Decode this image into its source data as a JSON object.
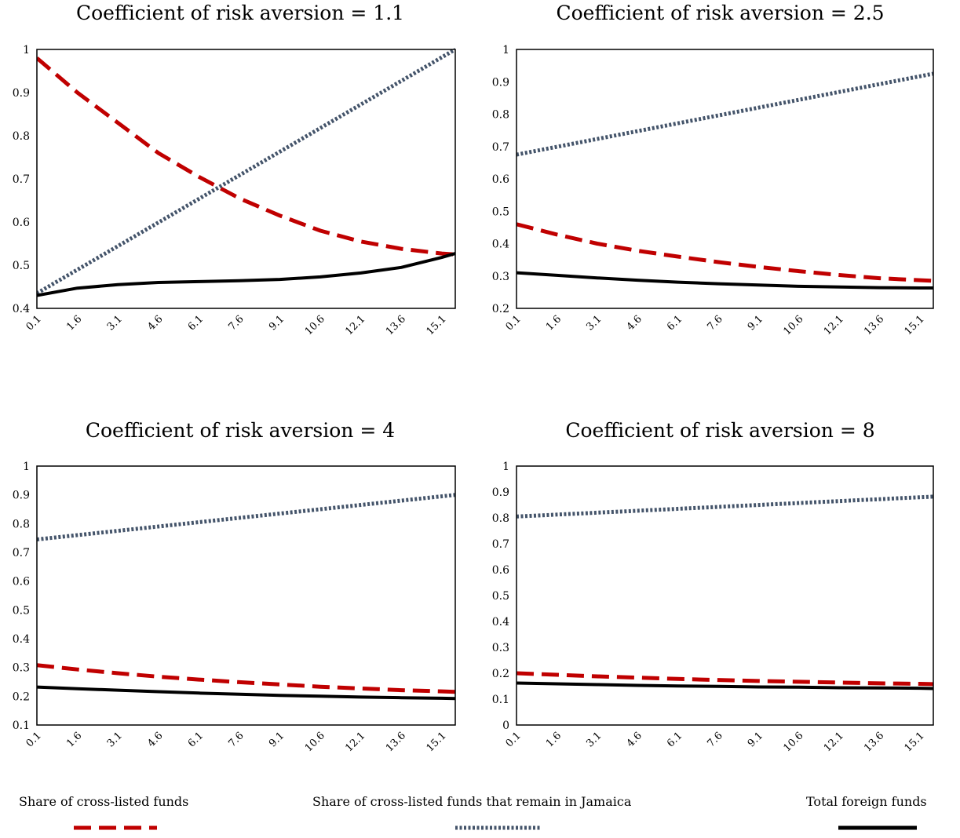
{
  "chart_data": [
    {
      "type": "line",
      "title": "Coefficient of risk aversion = 1.1",
      "x_tick_labels": [
        "0.1",
        "1.6",
        "3.1",
        "4.6",
        "6.1",
        "7.6",
        "9.1",
        "10.6",
        "12.1",
        "13.6",
        "15.1"
      ],
      "y_tick_labels": [
        "0.4",
        "0.5",
        "0.6",
        "0.7",
        "0.8",
        "0.9",
        "1"
      ],
      "ylim": [
        0.4,
        1.0
      ],
      "xlim": [
        0.1,
        15.6
      ],
      "series": [
        {
          "name": "Share of cross-listed funds",
          "style": "dashed",
          "color": "#c00000",
          "x": [
            0.1,
            1.6,
            3.1,
            4.6,
            6.1,
            7.6,
            9.1,
            10.6,
            12.1,
            13.6,
            15.1,
            15.6
          ],
          "y": [
            0.98,
            0.9,
            0.83,
            0.76,
            0.705,
            0.655,
            0.615,
            0.58,
            0.555,
            0.538,
            0.527,
            0.525
          ]
        },
        {
          "name": "Share of cross-listed funds that remain in Jamaica",
          "style": "dotted",
          "color": "#44546a",
          "x": [
            0.1,
            15.6
          ],
          "y": [
            0.435,
            1.0
          ]
        },
        {
          "name": "Total foreign funds",
          "style": "solid",
          "color": "#000000",
          "x": [
            0.1,
            1.6,
            3.1,
            4.6,
            6.1,
            7.6,
            9.1,
            10.6,
            12.1,
            13.6,
            15.1,
            15.6
          ],
          "y": [
            0.43,
            0.447,
            0.455,
            0.46,
            0.462,
            0.464,
            0.467,
            0.473,
            0.482,
            0.495,
            0.518,
            0.527
          ]
        }
      ]
    },
    {
      "type": "line",
      "title": "Coefficient of risk aversion = 2.5",
      "x_tick_labels": [
        "0.1",
        "1.6",
        "3.1",
        "4.6",
        "6.1",
        "7.6",
        "9.1",
        "10.6",
        "12.1",
        "13.6",
        "15.1"
      ],
      "y_tick_labels": [
        "0.2",
        "0.3",
        "0.4",
        "0.5",
        "0.6",
        "0.7",
        "0.8",
        "0.9",
        "1"
      ],
      "ylim": [
        0.2,
        1.0
      ],
      "xlim": [
        0.1,
        15.6
      ],
      "series": [
        {
          "name": "Share of cross-listed funds",
          "style": "dashed",
          "color": "#c00000",
          "x": [
            0.1,
            1.6,
            3.1,
            4.6,
            6.1,
            7.6,
            9.1,
            10.6,
            12.1,
            13.6,
            15.1,
            15.6
          ],
          "y": [
            0.46,
            0.428,
            0.4,
            0.378,
            0.36,
            0.343,
            0.328,
            0.315,
            0.303,
            0.293,
            0.287,
            0.285
          ]
        },
        {
          "name": "Share of cross-listed funds that remain in Jamaica",
          "style": "dotted",
          "color": "#44546a",
          "x": [
            0.1,
            15.6
          ],
          "y": [
            0.675,
            0.925
          ]
        },
        {
          "name": "Total foreign funds",
          "style": "solid",
          "color": "#000000",
          "x": [
            0.1,
            1.6,
            3.1,
            4.6,
            6.1,
            7.6,
            9.1,
            10.6,
            12.1,
            13.6,
            15.1,
            15.6
          ],
          "y": [
            0.31,
            0.302,
            0.294,
            0.287,
            0.281,
            0.276,
            0.272,
            0.268,
            0.266,
            0.264,
            0.263,
            0.263
          ]
        }
      ]
    },
    {
      "type": "line",
      "title": "Coefficient of risk aversion = 4",
      "x_tick_labels": [
        "0.1",
        "1.6",
        "3.1",
        "4.6",
        "6.1",
        "7.6",
        "9.1",
        "10.6",
        "12.1",
        "13.6",
        "15.1"
      ],
      "y_tick_labels": [
        "0.1",
        "0.2",
        "0.3",
        "0.4",
        "0.5",
        "0.6",
        "0.7",
        "0.8",
        "0.9",
        "1"
      ],
      "ylim": [
        0.1,
        1.0
      ],
      "xlim": [
        0.1,
        15.6
      ],
      "series": [
        {
          "name": "Share of cross-listed funds",
          "style": "dashed",
          "color": "#c00000",
          "x": [
            0.1,
            1.6,
            3.1,
            4.6,
            6.1,
            7.6,
            9.1,
            10.6,
            12.1,
            13.6,
            15.1,
            15.6
          ],
          "y": [
            0.308,
            0.293,
            0.28,
            0.268,
            0.258,
            0.249,
            0.241,
            0.233,
            0.227,
            0.221,
            0.217,
            0.215
          ]
        },
        {
          "name": "Share of cross-listed funds that remain in Jamaica",
          "style": "dotted",
          "color": "#44546a",
          "x": [
            0.1,
            15.6
          ],
          "y": [
            0.745,
            0.9
          ]
        },
        {
          "name": "Total foreign funds",
          "style": "solid",
          "color": "#000000",
          "x": [
            0.1,
            1.6,
            3.1,
            4.6,
            6.1,
            7.6,
            9.1,
            10.6,
            12.1,
            13.6,
            15.1,
            15.6
          ],
          "y": [
            0.232,
            0.226,
            0.221,
            0.216,
            0.211,
            0.207,
            0.203,
            0.2,
            0.197,
            0.195,
            0.193,
            0.192
          ]
        }
      ]
    },
    {
      "type": "line",
      "title": "Coefficient of risk aversion = 8",
      "x_tick_labels": [
        "0.1",
        "1.6",
        "3.1",
        "4.6",
        "6.1",
        "7.6",
        "9.1",
        "10.6",
        "12.1",
        "13.6",
        "15.1"
      ],
      "y_tick_labels": [
        "0",
        "0.1",
        "0.2",
        "0.3",
        "0.4",
        "0.5",
        "0.6",
        "0.7",
        "0.8",
        "0.9",
        "1"
      ],
      "ylim": [
        0.0,
        1.0
      ],
      "xlim": [
        0.1,
        15.6
      ],
      "series": [
        {
          "name": "Share of cross-listed funds",
          "style": "dashed",
          "color": "#c00000",
          "x": [
            0.1,
            1.6,
            3.1,
            4.6,
            6.1,
            7.6,
            9.1,
            10.6,
            12.1,
            13.6,
            15.1,
            15.6
          ],
          "y": [
            0.2,
            0.194,
            0.188,
            0.183,
            0.178,
            0.174,
            0.17,
            0.167,
            0.164,
            0.161,
            0.159,
            0.158
          ]
        },
        {
          "name": "Share of cross-listed funds that remain in Jamaica",
          "style": "dotted",
          "color": "#44546a",
          "x": [
            0.1,
            15.6
          ],
          "y": [
            0.805,
            0.882
          ]
        },
        {
          "name": "Total foreign funds",
          "style": "solid",
          "color": "#000000",
          "x": [
            0.1,
            1.6,
            3.1,
            4.6,
            6.1,
            7.6,
            9.1,
            10.6,
            12.1,
            13.6,
            15.1,
            15.6
          ],
          "y": [
            0.162,
            0.159,
            0.156,
            0.153,
            0.151,
            0.149,
            0.147,
            0.146,
            0.144,
            0.143,
            0.142,
            0.141
          ]
        }
      ]
    }
  ],
  "legend": {
    "placement": "bottom",
    "items": [
      {
        "label": "Share of cross-listed funds",
        "style": "dashed",
        "color": "#c00000"
      },
      {
        "label": "Share of cross-listed funds that remain in Jamaica",
        "style": "dotted",
        "color": "#44546a"
      },
      {
        "label": "Total foreign funds",
        "style": "solid",
        "color": "#000000"
      }
    ]
  }
}
